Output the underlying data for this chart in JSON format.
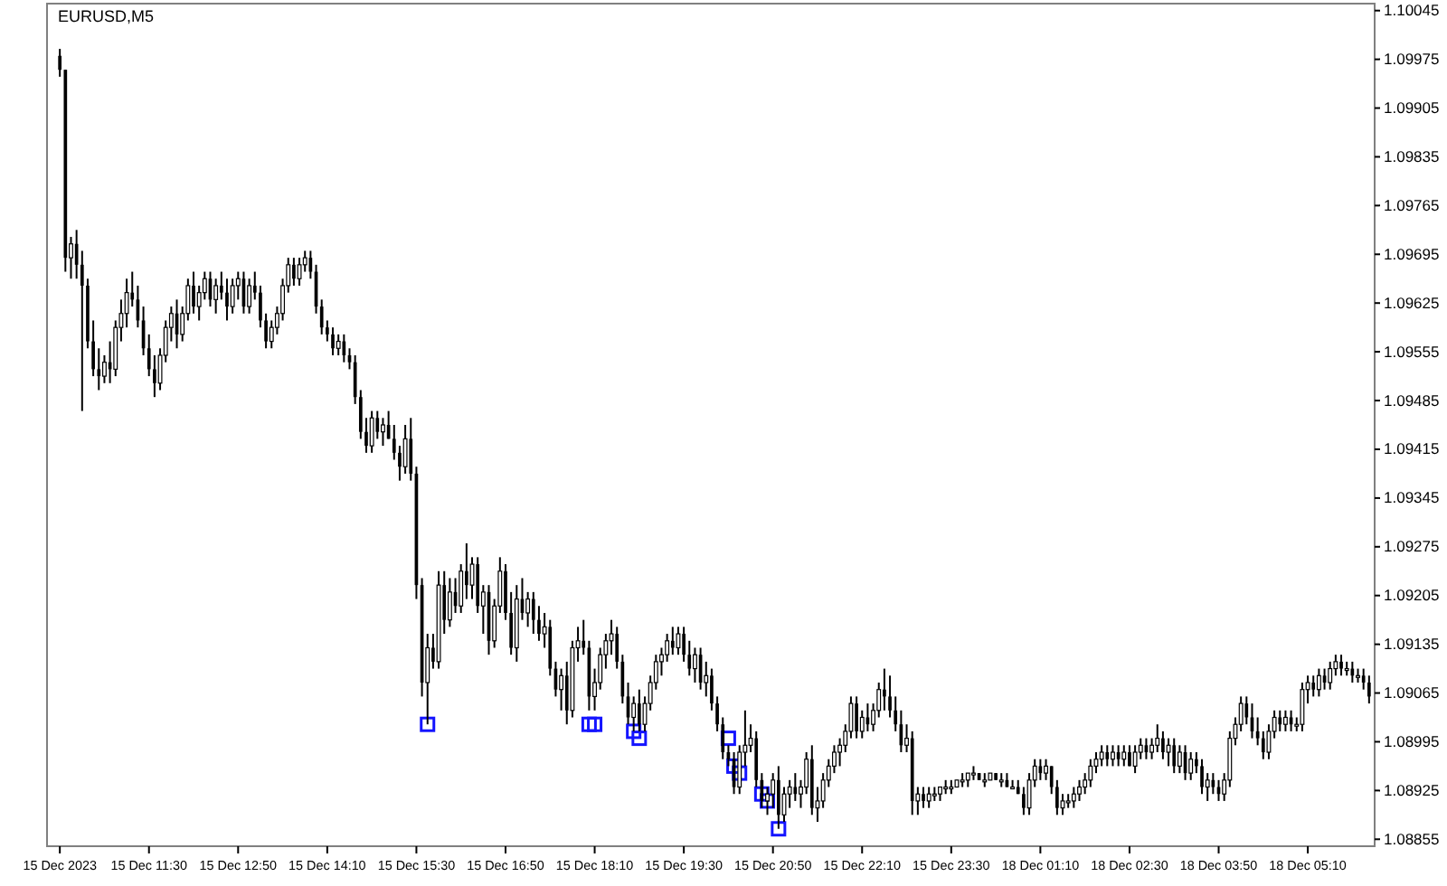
{
  "chart_data": {
    "type": "candlestick",
    "title": "EURUSD,M5",
    "color": "#000000",
    "categories": [
      "15 Dec 2023",
      null,
      null,
      null,
      null,
      null,
      null,
      null,
      null,
      null,
      null,
      null,
      null,
      null,
      null,
      null,
      "15 Dec 11:30",
      null,
      null,
      null,
      null,
      null,
      null,
      null,
      null,
      null,
      null,
      null,
      null,
      null,
      null,
      null,
      "15 Dec 12:50",
      null,
      null,
      null,
      null,
      null,
      null,
      null,
      null,
      null,
      null,
      null,
      null,
      null,
      null,
      null,
      "15 Dec 14:10",
      null,
      null,
      null,
      null,
      null,
      null,
      null,
      null,
      null,
      null,
      null,
      null,
      null,
      null,
      null,
      "15 Dec 15:30",
      null,
      null,
      null,
      null,
      null,
      null,
      null,
      null,
      null,
      null,
      null,
      null,
      null,
      null,
      null,
      "15 Dec 16:50",
      null,
      null,
      null,
      null,
      null,
      null,
      null,
      null,
      null,
      null,
      null,
      null,
      null,
      null,
      null,
      "15 Dec 18:10",
      null,
      null,
      null,
      null,
      null,
      null,
      null,
      null,
      null,
      null,
      null,
      null,
      null,
      null,
      null,
      "15 Dec 19:30",
      null,
      null,
      null,
      null,
      null,
      null,
      null,
      null,
      null,
      null,
      null,
      null,
      null,
      null,
      null,
      "15 Dec 20:50",
      null,
      null,
      null,
      null,
      null,
      null,
      null,
      null,
      null,
      null,
      null,
      null,
      null,
      null,
      null,
      "15 Dec 22:10",
      null,
      null,
      null,
      null,
      null,
      null,
      null,
      null,
      null,
      null,
      null,
      null,
      null,
      null,
      null,
      "15 Dec 23:30",
      null,
      null,
      null,
      null,
      null,
      null,
      null,
      null,
      null,
      null,
      null,
      null,
      null,
      null,
      null,
      "18 Dec 01:10",
      null,
      null,
      null,
      null,
      null,
      null,
      null,
      null,
      null,
      null,
      null,
      null,
      null,
      null,
      null,
      "18 Dec 02:30",
      null,
      null,
      null,
      null,
      null,
      null,
      null,
      null,
      null,
      null,
      null,
      null,
      null,
      null,
      null,
      "18 Dec 03:50",
      null,
      null,
      null,
      null,
      null,
      null,
      null,
      null,
      null,
      null,
      null,
      null,
      null,
      null,
      null,
      "18 Dec 05:10",
      null,
      null,
      null,
      null,
      null,
      null,
      null,
      null,
      null,
      null,
      null
    ],
    "ohlc": [
      [
        1.0998,
        1.0999,
        1.0995,
        1.0996
      ],
      [
        1.0996,
        1.0996,
        1.0967,
        1.0969
      ],
      [
        1.0969,
        1.0972,
        1.0966,
        1.0971
      ],
      [
        1.0971,
        1.0973,
        1.0966,
        1.0968
      ],
      [
        1.0968,
        1.097,
        1.0947,
        1.0965
      ],
      [
        1.0965,
        1.0966,
        1.0956,
        1.0957
      ],
      [
        1.0957,
        1.096,
        1.0952,
        1.0953
      ],
      [
        1.0953,
        1.0956,
        1.095,
        1.0952
      ],
      [
        1.0952,
        1.0955,
        1.0951,
        1.0954
      ],
      [
        1.0954,
        1.0957,
        1.0951,
        1.0953
      ],
      [
        1.0953,
        1.096,
        1.0952,
        1.0959
      ],
      [
        1.0959,
        1.0963,
        1.0957,
        1.0961
      ],
      [
        1.0961,
        1.0966,
        1.0959,
        1.0964
      ],
      [
        1.0964,
        1.0967,
        1.0962,
        1.0963
      ],
      [
        1.0963,
        1.0965,
        1.0959,
        1.096
      ],
      [
        1.096,
        1.0962,
        1.0955,
        1.0956
      ],
      [
        1.0956,
        1.0958,
        1.0952,
        1.0953
      ],
      [
        1.0953,
        1.0955,
        1.0949,
        1.0951
      ],
      [
        1.0951,
        1.0956,
        1.095,
        1.0955
      ],
      [
        1.0955,
        1.096,
        1.0954,
        1.0959
      ],
      [
        1.0959,
        1.0962,
        1.0957,
        1.0961
      ],
      [
        1.0961,
        1.0963,
        1.0956,
        1.0958
      ],
      [
        1.0958,
        1.0962,
        1.0957,
        1.0961
      ],
      [
        1.0961,
        1.0966,
        1.096,
        1.0965
      ],
      [
        1.0965,
        1.0967,
        1.0961,
        1.0962
      ],
      [
        1.0962,
        1.0965,
        1.096,
        1.0964
      ],
      [
        1.0964,
        1.0967,
        1.0963,
        1.0966
      ],
      [
        1.0966,
        1.0967,
        1.0962,
        1.0963
      ],
      [
        1.0963,
        1.0966,
        1.0961,
        1.0965
      ],
      [
        1.0965,
        1.0967,
        1.0963,
        1.0964
      ],
      [
        1.0964,
        1.0966,
        1.096,
        1.0962
      ],
      [
        1.0962,
        1.0966,
        1.0961,
        1.0965
      ],
      [
        1.0965,
        1.0967,
        1.0963,
        1.0966
      ],
      [
        1.0966,
        1.0967,
        1.0961,
        1.0962
      ],
      [
        1.0962,
        1.0966,
        1.0961,
        1.0965
      ],
      [
        1.0965,
        1.0967,
        1.0963,
        1.0964
      ],
      [
        1.0964,
        1.0965,
        1.0959,
        1.096
      ],
      [
        1.096,
        1.0961,
        1.0956,
        1.0957
      ],
      [
        1.0957,
        1.096,
        1.0956,
        1.0959
      ],
      [
        1.0959,
        1.0962,
        1.0958,
        1.0961
      ],
      [
        1.0961,
        1.0966,
        1.096,
        1.0965
      ],
      [
        1.0965,
        1.0969,
        1.0964,
        1.0968
      ],
      [
        1.0968,
        1.0969,
        1.0965,
        1.0966
      ],
      [
        1.0966,
        1.0969,
        1.0965,
        1.0968
      ],
      [
        1.0968,
        1.097,
        1.0967,
        1.0969
      ],
      [
        1.0969,
        1.097,
        1.0966,
        1.0967
      ],
      [
        1.0967,
        1.0968,
        1.0961,
        1.0962
      ],
      [
        1.0962,
        1.0963,
        1.0958,
        1.0959
      ],
      [
        1.0959,
        1.096,
        1.0957,
        1.0958
      ],
      [
        1.0958,
        1.0959,
        1.0955,
        1.0956
      ],
      [
        1.0956,
        1.0958,
        1.0955,
        1.0957
      ],
      [
        1.0957,
        1.0958,
        1.0954,
        1.0955
      ],
      [
        1.0955,
        1.0956,
        1.0953,
        1.0954
      ],
      [
        1.0954,
        1.0955,
        1.0948,
        1.0949
      ],
      [
        1.0949,
        1.095,
        1.0943,
        1.0944
      ],
      [
        1.0944,
        1.0946,
        1.0941,
        1.0942
      ],
      [
        1.0942,
        1.0947,
        1.0941,
        1.0946
      ],
      [
        1.0946,
        1.0947,
        1.0943,
        1.0944
      ],
      [
        1.0944,
        1.0946,
        1.0942,
        1.0945
      ],
      [
        1.0945,
        1.0947,
        1.0943,
        1.0943
      ],
      [
        1.0943,
        1.0945,
        1.094,
        1.0941
      ],
      [
        1.0941,
        1.0942,
        1.0937,
        1.0939
      ],
      [
        1.0939,
        1.0945,
        1.0938,
        1.0943
      ],
      [
        1.0943,
        1.0946,
        1.0937,
        1.0938
      ],
      [
        1.0938,
        1.0939,
        1.092,
        1.0922
      ],
      [
        1.0922,
        1.0923,
        1.0906,
        1.0908
      ],
      [
        1.0908,
        1.0915,
        1.0902,
        1.0913
      ],
      [
        1.0913,
        1.0915,
        1.091,
        1.0911
      ],
      [
        1.0911,
        1.0924,
        1.091,
        1.0922
      ],
      [
        1.0922,
        1.0924,
        1.0915,
        1.0917
      ],
      [
        1.0917,
        1.0923,
        1.0916,
        1.0921
      ],
      [
        1.0921,
        1.0923,
        1.0918,
        1.0919
      ],
      [
        1.0919,
        1.0925,
        1.0918,
        1.0924
      ],
      [
        1.0924,
        1.0928,
        1.092,
        1.0922
      ],
      [
        1.0922,
        1.0926,
        1.092,
        1.0925
      ],
      [
        1.0925,
        1.0926,
        1.0918,
        1.0919
      ],
      [
        1.0919,
        1.0922,
        1.0915,
        1.0921
      ],
      [
        1.0921,
        1.0922,
        1.0912,
        1.0914
      ],
      [
        1.0914,
        1.092,
        1.0913,
        1.0919
      ],
      [
        1.0919,
        1.0926,
        1.0918,
        1.0924
      ],
      [
        1.0924,
        1.0925,
        1.0917,
        1.0918
      ],
      [
        1.0918,
        1.0921,
        1.0912,
        1.0913
      ],
      [
        1.0913,
        1.0922,
        1.0911,
        1.092
      ],
      [
        1.092,
        1.0923,
        1.0917,
        1.0918
      ],
      [
        1.0918,
        1.0921,
        1.0916,
        1.092
      ],
      [
        1.092,
        1.0921,
        1.0915,
        1.0917
      ],
      [
        1.0917,
        1.0919,
        1.0914,
        1.0915
      ],
      [
        1.0915,
        1.0918,
        1.0913,
        1.0916
      ],
      [
        1.0916,
        1.0917,
        1.0909,
        1.091
      ],
      [
        1.091,
        1.0911,
        1.0906,
        1.0907
      ],
      [
        1.0907,
        1.091,
        1.0904,
        1.0909
      ],
      [
        1.0909,
        1.0911,
        1.0902,
        1.0904
      ],
      [
        1.0904,
        1.0914,
        1.0903,
        1.0913
      ],
      [
        1.0913,
        1.0916,
        1.0911,
        1.0914
      ],
      [
        1.0914,
        1.0917,
        1.0912,
        1.0913
      ],
      [
        1.0913,
        1.0914,
        1.0904,
        1.0906
      ],
      [
        1.0906,
        1.091,
        1.0904,
        1.0908
      ],
      [
        1.0908,
        1.0913,
        1.0907,
        1.0912
      ],
      [
        1.0912,
        1.0915,
        1.091,
        1.0914
      ],
      [
        1.0914,
        1.0917,
        1.0912,
        1.0915
      ],
      [
        1.0915,
        1.0916,
        1.091,
        1.0911
      ],
      [
        1.0911,
        1.0912,
        1.0905,
        1.0906
      ],
      [
        1.0906,
        1.0908,
        1.0902,
        1.0903
      ],
      [
        1.0903,
        1.0906,
        1.0901,
        1.0905
      ],
      [
        1.0905,
        1.0907,
        1.0901,
        1.0902
      ],
      [
        1.0902,
        1.0906,
        1.0901,
        1.0905
      ],
      [
        1.0905,
        1.0909,
        1.0904,
        1.0908
      ],
      [
        1.0908,
        1.0912,
        1.0907,
        1.0911
      ],
      [
        1.0911,
        1.0913,
        1.0909,
        1.0912
      ],
      [
        1.0912,
        1.0915,
        1.0911,
        1.0914
      ],
      [
        1.0914,
        1.0916,
        1.0912,
        1.0913
      ],
      [
        1.0913,
        1.0916,
        1.0912,
        1.0915
      ],
      [
        1.0915,
        1.0916,
        1.0911,
        1.0912
      ],
      [
        1.0912,
        1.0914,
        1.0909,
        1.091
      ],
      [
        1.091,
        1.0913,
        1.0908,
        1.0912
      ],
      [
        1.0912,
        1.0913,
        1.0907,
        1.0908
      ],
      [
        1.0908,
        1.0911,
        1.0906,
        1.0909
      ],
      [
        1.0909,
        1.091,
        1.0904,
        1.0905
      ],
      [
        1.0905,
        1.0906,
        1.0901,
        1.0902
      ],
      [
        1.0902,
        1.0903,
        1.0897,
        1.0898
      ],
      [
        1.0898,
        1.0899,
        1.0896,
        1.0897
      ],
      [
        1.0897,
        1.0898,
        1.0892,
        1.0893
      ],
      [
        1.0893,
        1.0899,
        1.0892,
        1.0898
      ],
      [
        1.0898,
        1.0904,
        1.0896,
        1.0899
      ],
      [
        1.0899,
        1.0902,
        1.0898,
        1.09
      ],
      [
        1.09,
        1.0901,
        1.0893,
        1.0894
      ],
      [
        1.0894,
        1.0895,
        1.089,
        1.0891
      ],
      [
        1.0891,
        1.0893,
        1.0889,
        1.0892
      ],
      [
        1.0892,
        1.0895,
        1.089,
        1.0894
      ],
      [
        1.0894,
        1.0896,
        1.0887,
        1.0889
      ],
      [
        1.0889,
        1.0893,
        1.0888,
        1.0892
      ],
      [
        1.0892,
        1.0894,
        1.089,
        1.0893
      ],
      [
        1.0893,
        1.0895,
        1.0891,
        1.0892
      ],
      [
        1.0892,
        1.0894,
        1.089,
        1.0893
      ],
      [
        1.0893,
        1.0898,
        1.0892,
        1.0897
      ],
      [
        1.0897,
        1.0899,
        1.0889,
        1.089
      ],
      [
        1.089,
        1.0893,
        1.0888,
        1.0891
      ],
      [
        1.0891,
        1.0895,
        1.089,
        1.0894
      ],
      [
        1.0894,
        1.0897,
        1.0893,
        1.0896
      ],
      [
        1.0896,
        1.0899,
        1.0895,
        1.0898
      ],
      [
        1.0898,
        1.09,
        1.0896,
        1.0899
      ],
      [
        1.0899,
        1.0902,
        1.0898,
        1.0901
      ],
      [
        1.0901,
        1.0906,
        1.09,
        1.0905
      ],
      [
        1.0905,
        1.0906,
        1.09,
        1.0901
      ],
      [
        1.0901,
        1.0904,
        1.09,
        1.0903
      ],
      [
        1.0903,
        1.0905,
        1.0901,
        1.0902
      ],
      [
        1.0902,
        1.0905,
        1.0901,
        1.0904
      ],
      [
        1.0904,
        1.0908,
        1.0903,
        1.0907
      ],
      [
        1.0907,
        1.091,
        1.0904,
        1.0906
      ],
      [
        1.0906,
        1.0909,
        1.0903,
        1.0904
      ],
      [
        1.0904,
        1.0906,
        1.0901,
        1.0902
      ],
      [
        1.0902,
        1.0904,
        1.0898,
        1.0899
      ],
      [
        1.0899,
        1.0902,
        1.0898,
        1.09
      ],
      [
        1.09,
        1.0901,
        1.0889,
        1.0891
      ],
      [
        1.0891,
        1.0893,
        1.0889,
        1.0892
      ],
      [
        1.0892,
        1.0893,
        1.089,
        1.0891
      ],
      [
        1.0891,
        1.0893,
        1.089,
        1.0892
      ],
      [
        1.0892,
        1.0893,
        1.0891,
        1.0892
      ],
      [
        1.0892,
        1.0893,
        1.0891,
        1.0893
      ],
      [
        1.0893,
        1.0894,
        1.0892,
        1.0893
      ],
      [
        1.0893,
        1.0894,
        1.0892,
        1.0893
      ],
      [
        1.0893,
        1.0894,
        1.0893,
        1.0894
      ],
      [
        1.0894,
        1.0895,
        1.0893,
        1.0894
      ],
      [
        1.0894,
        1.0895,
        1.0893,
        1.0895
      ],
      [
        1.0895,
        1.0896,
        1.0894,
        1.0895
      ],
      [
        1.0895,
        1.0895,
        1.0894,
        1.0894
      ],
      [
        1.0894,
        1.0895,
        1.0893,
        1.0894
      ],
      [
        1.0894,
        1.0895,
        1.0894,
        1.0895
      ],
      [
        1.0895,
        1.0895,
        1.0894,
        1.0894
      ],
      [
        1.0894,
        1.0895,
        1.0893,
        1.0894
      ],
      [
        1.0894,
        1.0895,
        1.0893,
        1.0893
      ],
      [
        1.0893,
        1.0894,
        1.0893,
        1.0893
      ],
      [
        1.0893,
        1.0894,
        1.0892,
        1.0892
      ],
      [
        1.0892,
        1.0893,
        1.0889,
        1.089
      ],
      [
        1.089,
        1.0895,
        1.0889,
        1.0894
      ],
      [
        1.0894,
        1.0897,
        1.0893,
        1.0896
      ],
      [
        1.0896,
        1.0897,
        1.0894,
        1.0895
      ],
      [
        1.0895,
        1.0897,
        1.0894,
        1.0896
      ],
      [
        1.0896,
        1.0896,
        1.0892,
        1.0893
      ],
      [
        1.0893,
        1.0894,
        1.0889,
        1.089
      ],
      [
        1.089,
        1.0892,
        1.0889,
        1.0891
      ],
      [
        1.0891,
        1.0892,
        1.089,
        1.0891
      ],
      [
        1.0891,
        1.0893,
        1.089,
        1.0892
      ],
      [
        1.0892,
        1.0894,
        1.0891,
        1.0893
      ],
      [
        1.0893,
        1.0895,
        1.0892,
        1.0894
      ],
      [
        1.0894,
        1.0897,
        1.0893,
        1.0896
      ],
      [
        1.0896,
        1.0898,
        1.0895,
        1.0897
      ],
      [
        1.0897,
        1.0899,
        1.0896,
        1.0898
      ],
      [
        1.0898,
        1.0899,
        1.0896,
        1.0897
      ],
      [
        1.0897,
        1.0899,
        1.0896,
        1.0898
      ],
      [
        1.0898,
        1.0899,
        1.0896,
        1.0897
      ],
      [
        1.0897,
        1.0899,
        1.0896,
        1.0898
      ],
      [
        1.0898,
        1.0899,
        1.0896,
        1.0896
      ],
      [
        1.0896,
        1.0899,
        1.0895,
        1.0898
      ],
      [
        1.0898,
        1.09,
        1.0897,
        1.0899
      ],
      [
        1.0899,
        1.09,
        1.0897,
        1.0898
      ],
      [
        1.0898,
        1.09,
        1.0897,
        1.0899
      ],
      [
        1.0899,
        1.0902,
        1.0898,
        1.09
      ],
      [
        1.09,
        1.0901,
        1.0897,
        1.0898
      ],
      [
        1.0898,
        1.09,
        1.0896,
        1.0899
      ],
      [
        1.0899,
        1.09,
        1.0895,
        1.0896
      ],
      [
        1.0896,
        1.0899,
        1.0895,
        1.0898
      ],
      [
        1.0898,
        1.0899,
        1.0894,
        1.0895
      ],
      [
        1.0895,
        1.0898,
        1.0894,
        1.0897
      ],
      [
        1.0897,
        1.0898,
        1.0895,
        1.0896
      ],
      [
        1.0896,
        1.0897,
        1.0892,
        1.0893
      ],
      [
        1.0893,
        1.0895,
        1.0891,
        1.0894
      ],
      [
        1.0894,
        1.0895,
        1.0892,
        1.0893
      ],
      [
        1.0893,
        1.0894,
        1.0891,
        1.0892
      ],
      [
        1.0892,
        1.0895,
        1.0891,
        1.0894
      ],
      [
        1.0894,
        1.0901,
        1.0893,
        1.09
      ],
      [
        1.09,
        1.0903,
        1.0899,
        1.0902
      ],
      [
        1.0902,
        1.0906,
        1.0901,
        1.0905
      ],
      [
        1.0905,
        1.0906,
        1.0902,
        1.0903
      ],
      [
        1.0903,
        1.0905,
        1.09,
        1.0901
      ],
      [
        1.0901,
        1.0903,
        1.0899,
        1.09
      ],
      [
        1.09,
        1.0901,
        1.0897,
        1.0898
      ],
      [
        1.0898,
        1.0902,
        1.0897,
        1.0901
      ],
      [
        1.0901,
        1.0904,
        1.09,
        1.0903
      ],
      [
        1.0903,
        1.0904,
        1.0901,
        1.0902
      ],
      [
        1.0902,
        1.0904,
        1.0901,
        1.0903
      ],
      [
        1.0903,
        1.0904,
        1.0901,
        1.0902
      ],
      [
        1.0902,
        1.0903,
        1.0901,
        1.0902
      ],
      [
        1.0902,
        1.0908,
        1.0901,
        1.0907
      ],
      [
        1.0907,
        1.0909,
        1.0905,
        1.0908
      ],
      [
        1.0908,
        1.0909,
        1.0906,
        1.0907
      ],
      [
        1.0907,
        1.091,
        1.0906,
        1.0909
      ],
      [
        1.0909,
        1.091,
        1.0907,
        1.0908
      ],
      [
        1.0908,
        1.0911,
        1.0907,
        1.091
      ],
      [
        1.091,
        1.0912,
        1.0909,
        1.0911
      ],
      [
        1.0911,
        1.0912,
        1.0909,
        1.091
      ],
      [
        1.091,
        1.0911,
        1.0909,
        1.091
      ],
      [
        1.091,
        1.0911,
        1.0908,
        1.0909
      ],
      [
        1.0909,
        1.091,
        1.0908,
        1.0909
      ],
      [
        1.0909,
        1.091,
        1.0907,
        1.0908
      ],
      [
        1.0908,
        1.0909,
        1.0905,
        1.0906
      ]
    ],
    "series": [
      {
        "type": "scatter",
        "color": "#1414ff",
        "marker": "square",
        "values": [
          null,
          null,
          null,
          null,
          null,
          null,
          null,
          null,
          null,
          null,
          null,
          null,
          null,
          null,
          null,
          null,
          null,
          null,
          null,
          null,
          null,
          null,
          null,
          null,
          null,
          null,
          null,
          null,
          null,
          null,
          null,
          null,
          null,
          null,
          null,
          null,
          null,
          null,
          null,
          null,
          null,
          null,
          null,
          null,
          null,
          null,
          null,
          null,
          null,
          null,
          null,
          null,
          null,
          null,
          null,
          null,
          null,
          null,
          null,
          null,
          null,
          null,
          null,
          null,
          null,
          null,
          1.0902,
          null,
          null,
          null,
          null,
          null,
          null,
          null,
          null,
          null,
          null,
          null,
          null,
          null,
          null,
          null,
          null,
          null,
          null,
          null,
          null,
          null,
          null,
          null,
          null,
          null,
          null,
          null,
          null,
          1.0902,
          1.0902,
          null,
          null,
          null,
          null,
          null,
          null,
          1.0901,
          1.09,
          null,
          null,
          null,
          null,
          null,
          null,
          null,
          null,
          null,
          null,
          null,
          null,
          null,
          null,
          null,
          1.09,
          1.0896,
          1.0895,
          null,
          null,
          null,
          1.0892,
          1.0891,
          null,
          1.0887,
          null,
          null,
          null,
          null,
          null,
          null,
          null,
          null,
          null,
          null,
          null,
          null,
          null,
          null,
          null,
          null,
          null,
          null,
          null,
          null,
          null,
          null,
          null,
          null,
          null,
          null,
          null,
          null,
          null,
          null,
          null,
          null,
          null,
          null,
          null,
          null,
          null,
          null,
          null,
          null,
          null,
          null,
          null,
          null,
          null,
          null,
          null,
          null,
          null,
          null,
          null,
          null,
          null,
          null,
          null,
          null,
          null,
          null,
          null,
          null,
          null,
          null,
          null,
          null,
          null,
          null,
          null,
          null,
          null,
          null,
          null,
          null,
          null,
          null,
          null,
          null,
          null,
          null,
          null,
          null,
          null,
          null,
          null,
          null,
          null,
          null,
          null,
          null,
          null,
          null,
          null,
          null,
          null,
          null,
          null,
          null,
          null,
          null,
          null,
          null,
          null,
          null,
          null,
          null,
          null,
          null
        ]
      }
    ],
    "ylim": [
      1.08845,
      1.10055
    ],
    "yticks": [
      1.10045,
      1.09975,
      1.09905,
      1.09835,
      1.09765,
      1.09695,
      1.09625,
      1.09555,
      1.09485,
      1.09415,
      1.09345,
      1.09275,
      1.09205,
      1.09135,
      1.09065,
      1.08995,
      1.08925,
      1.08855
    ]
  }
}
